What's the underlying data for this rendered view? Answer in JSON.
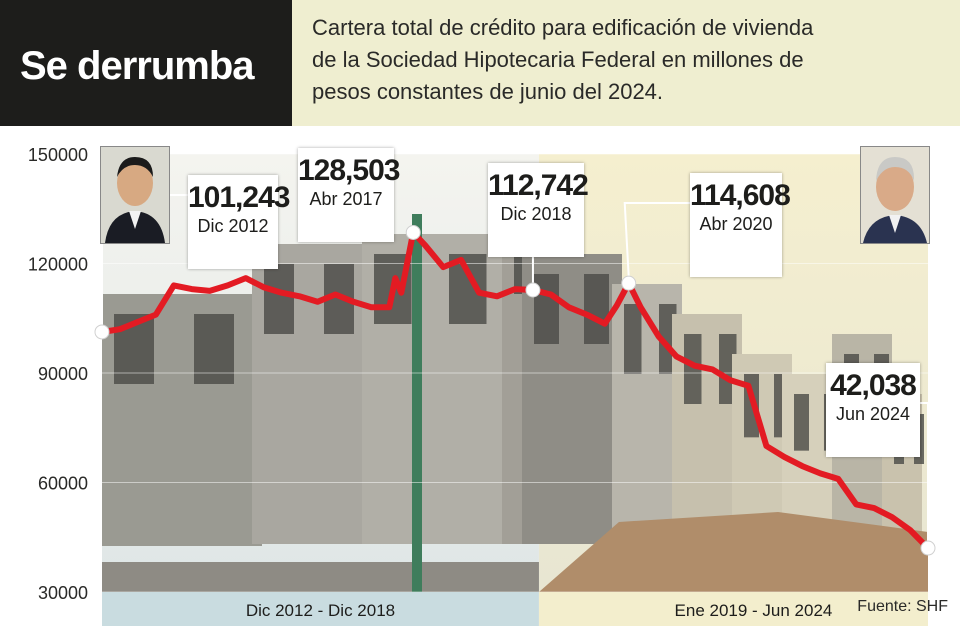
{
  "header": {
    "title": "Se derrumba",
    "subtitle": "Cartera total de crédito para edificación de vivienda de la Sociedad Hipotecaria Federal en millones de pesos constantes de junio del 2024."
  },
  "colors": {
    "line": "#e31b23",
    "period1_band": "#c9dce0",
    "period2_band": "#f3eecd",
    "title_bg": "#1d1d1b",
    "subtitle_bg": "#efeed0"
  },
  "chart_data": {
    "type": "line",
    "ylim": [
      30000,
      150000
    ],
    "y_ticks": [
      "150000",
      "120000",
      "90000",
      "60000",
      "30000"
    ],
    "x_periods": [
      {
        "label": "Dic 2012 - Dic 2018"
      },
      {
        "label": "Ene 2019 - Jun 2024"
      }
    ],
    "x_start": "2012-12",
    "x_end": "2024-06",
    "series": [
      {
        "points": [
          [
            "2012-12",
            101243
          ],
          [
            "2013-03",
            102000
          ],
          [
            "2013-06",
            104000
          ],
          [
            "2013-09",
            106000
          ],
          [
            "2013-12",
            114000
          ],
          [
            "2014-03",
            113000
          ],
          [
            "2014-06",
            112500
          ],
          [
            "2014-09",
            114000
          ],
          [
            "2014-12",
            116000
          ],
          [
            "2015-03",
            113500
          ],
          [
            "2015-06",
            112000
          ],
          [
            "2015-09",
            111000
          ],
          [
            "2015-12",
            109500
          ],
          [
            "2016-03",
            111500
          ],
          [
            "2016-06",
            109500
          ],
          [
            "2016-09",
            108000
          ],
          [
            "2016-12",
            108000
          ],
          [
            "2017-01",
            116000
          ],
          [
            "2017-02",
            112000
          ],
          [
            "2017-04",
            128503
          ],
          [
            "2017-06",
            125000
          ],
          [
            "2017-09",
            119000
          ],
          [
            "2017-12",
            121000
          ],
          [
            "2018-03",
            112000
          ],
          [
            "2018-06",
            111000
          ],
          [
            "2018-09",
            113000
          ],
          [
            "2018-12",
            112742
          ],
          [
            "2019-03",
            111500
          ],
          [
            "2019-06",
            108000
          ],
          [
            "2019-09",
            106000
          ],
          [
            "2019-12",
            103500
          ],
          [
            "2020-02",
            108500
          ],
          [
            "2020-04",
            114608
          ],
          [
            "2020-06",
            108000
          ],
          [
            "2020-09",
            100000
          ],
          [
            "2020-12",
            94500
          ],
          [
            "2021-03",
            92000
          ],
          [
            "2021-06",
            91000
          ],
          [
            "2021-09",
            88000
          ],
          [
            "2021-12",
            86500
          ],
          [
            "2022-03",
            70000
          ],
          [
            "2022-06",
            67000
          ],
          [
            "2022-09",
            64500
          ],
          [
            "2022-12",
            62500
          ],
          [
            "2023-03",
            61000
          ],
          [
            "2023-06",
            54000
          ],
          [
            "2023-09",
            53000
          ],
          [
            "2023-12",
            50500
          ],
          [
            "2024-03",
            47000
          ],
          [
            "2024-06",
            42038
          ]
        ]
      }
    ],
    "annotations": [
      {
        "value": "101,243",
        "date": "Dic 2012",
        "x": "2012-12",
        "y": 101243
      },
      {
        "value": "128,503",
        "date": "Abr 2017",
        "x": "2017-04",
        "y": 128503
      },
      {
        "value": "112,742",
        "date": "Dic 2018",
        "x": "2018-12",
        "y": 112742
      },
      {
        "value": "114,608",
        "date": "Abr 2020",
        "x": "2020-04",
        "y": 114608
      },
      {
        "value": "42,038",
        "date": "Jun 2024",
        "x": "2024-06",
        "y": 42038
      }
    ],
    "source": "Fuente: SHF"
  }
}
